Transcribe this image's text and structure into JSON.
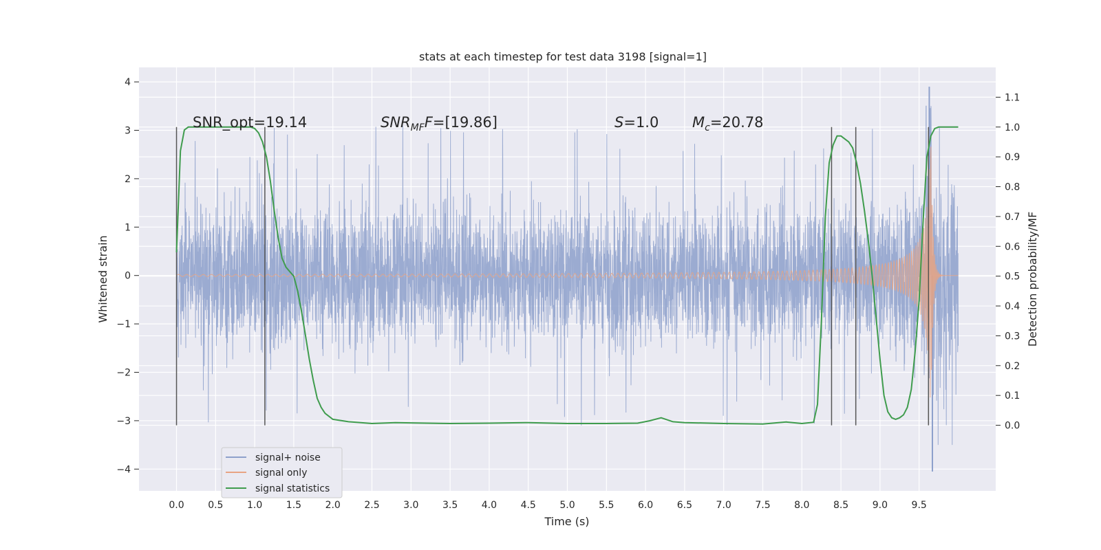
{
  "chart_data": {
    "type": "line",
    "title": "stats at each timestep for test data 3198 [signal=1]",
    "xlabel": "Time (s)",
    "ylabel": "Whitened strain",
    "y2label": "Detection probability/MF",
    "xlim": [
      -0.48,
      10.48
    ],
    "ylim": [
      -4.45,
      4.3
    ],
    "y2lim": [
      -0.22,
      1.2
    ],
    "x_ticks": [
      "0.0",
      "0.5",
      "1.0",
      "1.5",
      "2.0",
      "2.5",
      "3.0",
      "3.5",
      "4.0",
      "4.5",
      "5.0",
      "5.5",
      "6.0",
      "6.5",
      "7.0",
      "7.5",
      "8.0",
      "8.5",
      "9.0",
      "9.5"
    ],
    "y_ticks": [
      "4",
      "3",
      "2",
      "1",
      "0",
      "−1",
      "−2",
      "−3",
      "−4"
    ],
    "y2_ticks": [
      "1.1",
      "1.0",
      "0.9",
      "0.8",
      "0.7",
      "0.6",
      "0.5",
      "0.4",
      "0.3",
      "0.2",
      "0.1",
      "0.0"
    ],
    "grid": true,
    "legend_position": "lower-left",
    "annotations": {
      "snr_opt": "SNR_opt=19.14",
      "snr_mf_main": "SNR",
      "snr_mf_sub": "MF",
      "snr_mf_value": "=[19.86]",
      "s_main": "S",
      "s_value": "=1.0",
      "mc_main": "M",
      "mc_sub": "c",
      "mc_value": "=20.78"
    },
    "series": [
      {
        "name": "signal+ noise",
        "color": "#8da0cb",
        "axis": "left",
        "x_range": [
          0.0,
          10.0
        ],
        "envelope": {
          "typical_abs": 1.3,
          "peak_pos": 3.9,
          "peak_neg": -4.05
        }
      },
      {
        "name": "signal only",
        "color": "#e8a383",
        "axis": "left",
        "x_range": [
          0.0,
          10.0
        ],
        "merger_time": 9.65,
        "peak_amplitude": 3.0
      },
      {
        "name": "signal statistics",
        "color": "#3f9c4d",
        "axis": "right",
        "x": [
          0.0,
          0.05,
          0.1,
          0.15,
          0.2,
          0.4,
          0.6,
          0.8,
          0.95,
          1.0,
          1.05,
          1.1,
          1.15,
          1.2,
          1.25,
          1.3,
          1.35,
          1.4,
          1.45,
          1.5,
          1.55,
          1.6,
          1.65,
          1.7,
          1.75,
          1.8,
          1.85,
          1.9,
          2.0,
          2.2,
          2.5,
          2.8,
          3.0,
          3.5,
          4.0,
          4.5,
          5.0,
          5.5,
          5.9,
          6.05,
          6.2,
          6.35,
          6.5,
          7.0,
          7.5,
          7.8,
          8.0,
          8.15,
          8.2,
          8.25,
          8.3,
          8.35,
          8.4,
          8.45,
          8.5,
          8.6,
          8.65,
          8.7,
          8.75,
          8.8,
          8.85,
          8.9,
          8.95,
          9.0,
          9.05,
          9.1,
          9.15,
          9.2,
          9.25,
          9.3,
          9.35,
          9.4,
          9.45,
          9.5,
          9.55,
          9.6,
          9.65,
          9.7,
          9.75,
          9.8,
          9.9,
          10.0
        ],
        "values": [
          0.58,
          0.92,
          0.99,
          1.0,
          1.0,
          1.0,
          1.0,
          1.0,
          1.0,
          0.995,
          0.98,
          0.95,
          0.9,
          0.82,
          0.72,
          0.63,
          0.56,
          0.53,
          0.515,
          0.5,
          0.45,
          0.38,
          0.3,
          0.22,
          0.15,
          0.09,
          0.06,
          0.04,
          0.02,
          0.012,
          0.006,
          0.009,
          0.008,
          0.006,
          0.007,
          0.009,
          0.006,
          0.006,
          0.007,
          0.015,
          0.025,
          0.012,
          0.009,
          0.006,
          0.004,
          0.011,
          0.006,
          0.01,
          0.07,
          0.35,
          0.7,
          0.88,
          0.94,
          0.97,
          0.97,
          0.95,
          0.93,
          0.88,
          0.81,
          0.72,
          0.62,
          0.5,
          0.36,
          0.22,
          0.1,
          0.045,
          0.025,
          0.02,
          0.025,
          0.035,
          0.06,
          0.12,
          0.25,
          0.42,
          0.68,
          0.9,
          0.97,
          0.995,
          1.0,
          1.0,
          1.0,
          1.0
        ]
      }
    ],
    "vertical_markers": [
      0.0,
      1.13,
      8.38,
      8.69,
      9.62
    ]
  }
}
